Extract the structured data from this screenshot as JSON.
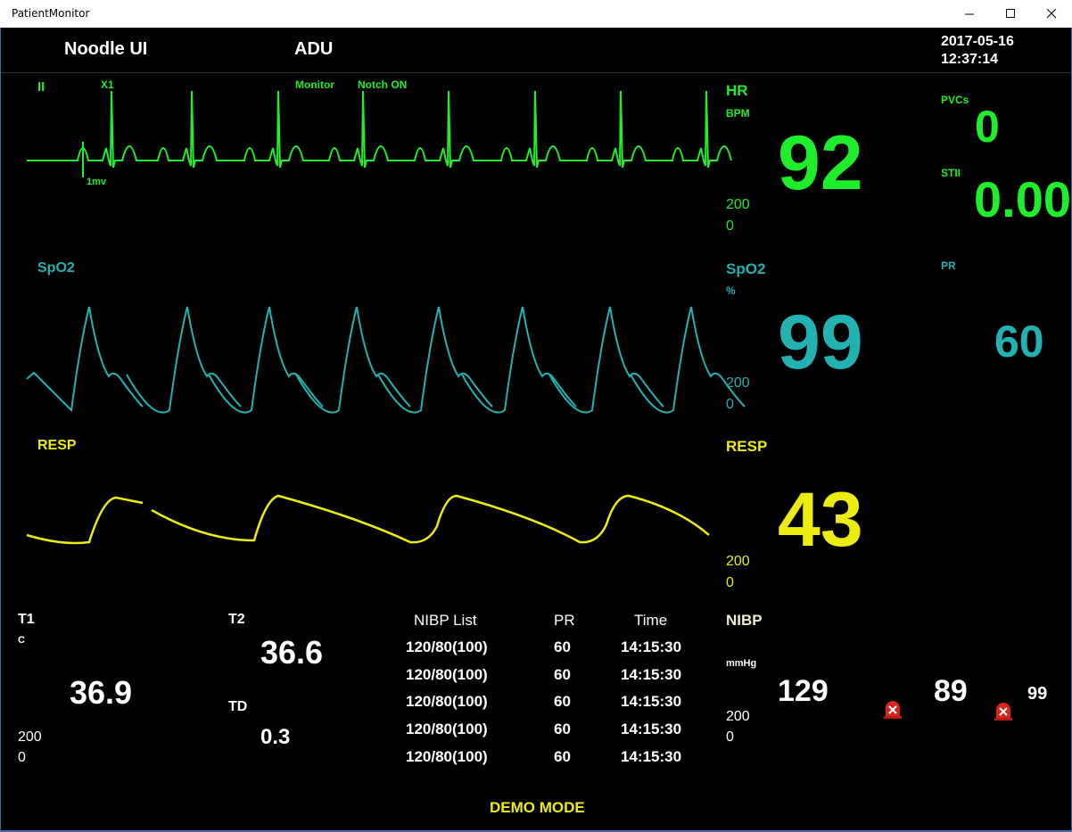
{
  "window": {
    "title": "PatientMonitor"
  },
  "header": {
    "brand": "Noodle UI",
    "patient_type": "ADU",
    "date": "2017-05-16",
    "time": "12:37:14"
  },
  "ecg": {
    "lead": "II",
    "gain": "X1",
    "mode": "Monitor",
    "notch": "Notch ON",
    "scale": "1mv",
    "color": "#1fee2a"
  },
  "hr": {
    "label": "HR",
    "unit": "BPM",
    "value": "92",
    "upper": "200",
    "lower": "0"
  },
  "pvcs": {
    "label": "PVCs",
    "value": "0"
  },
  "st": {
    "label": "STII",
    "value": "0.00"
  },
  "spo2_wave": {
    "label": "SpO2",
    "color": "#22b2b2"
  },
  "spo2": {
    "label": "SpO2",
    "unit": "%",
    "value": "99",
    "upper": "200",
    "lower": "0"
  },
  "pr": {
    "label": "PR",
    "value": "60"
  },
  "resp_wave": {
    "label": "RESP",
    "color": "#ecec10"
  },
  "resp": {
    "label": "RESP",
    "value": "43",
    "upper": "200",
    "lower": "0"
  },
  "temp": {
    "t1_label": "T1",
    "unit": "C",
    "t1_value": "36.9",
    "upper": "200",
    "lower": "0",
    "t2_label": "T2",
    "t2_value": "36.6",
    "td_label": "TD",
    "td_value": "0.3"
  },
  "nibp_list": {
    "headers": {
      "list": "NIBP List",
      "pr": "PR",
      "time": "Time"
    },
    "rows": [
      {
        "bp": "120/80(100)",
        "pr": "60",
        "time": "14:15:30"
      },
      {
        "bp": "120/80(100)",
        "pr": "60",
        "time": "14:15:30"
      },
      {
        "bp": "120/80(100)",
        "pr": "60",
        "time": "14:15:30"
      },
      {
        "bp": "120/80(100)",
        "pr": "60",
        "time": "14:15:30"
      },
      {
        "bp": "120/80(100)",
        "pr": "60",
        "time": "14:15:30"
      }
    ]
  },
  "nibp": {
    "label": "NIBP",
    "unit": "mmHg",
    "sys": "129",
    "dia": "89",
    "mean": "99",
    "upper": "200",
    "lower": "0"
  },
  "footer": {
    "mode": "DEMO MODE"
  }
}
